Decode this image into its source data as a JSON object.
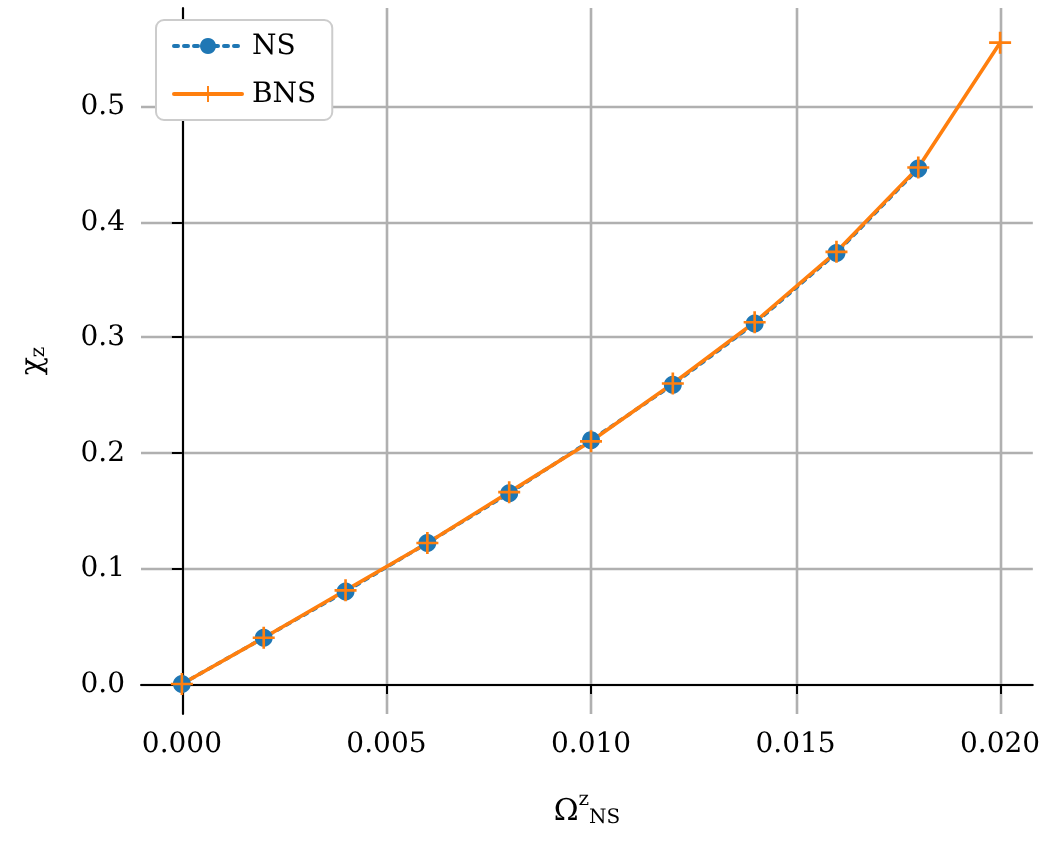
{
  "chart_data": {
    "type": "line",
    "xlabel": "Ω$^{z}$$_{NS}$",
    "ylabel": "χ$_{z}$",
    "x": [
      0,
      0.002,
      0.004,
      0.006,
      0.008,
      0.01,
      0.012,
      0.014,
      0.016,
      0.018,
      0.02
    ],
    "series": [
      {
        "name": "NS",
        "color": "#1f77b4",
        "marker": "circle",
        "line_style": "dotted",
        "values": [
          0,
          0.04,
          0.08,
          0.122,
          0.165,
          0.211,
          0.259,
          0.312,
          0.373,
          0.446,
          null
        ]
      },
      {
        "name": "BNS",
        "color": "#ff7f0e",
        "marker": "cross",
        "line_style": "solid",
        "values": [
          0,
          0.04,
          0.081,
          0.122,
          0.166,
          0.21,
          0.26,
          0.313,
          0.374,
          0.447,
          0.555
        ]
      }
    ],
    "xlim": [
      -0.001,
      0.0208
    ],
    "xticks": [
      {
        "value": 0,
        "label": "0.000"
      },
      {
        "value": 0.005,
        "label": "0.005"
      },
      {
        "value": 0.01,
        "label": "0.010"
      },
      {
        "value": 0.015,
        "label": "0.015"
      },
      {
        "value": 0.02,
        "label": "0.020"
      }
    ],
    "ylim": [
      -0.026,
      0.585
    ],
    "yticks": [
      {
        "value": 0,
        "label": "0.0"
      },
      {
        "value": 0.1,
        "label": "0.1"
      },
      {
        "value": 0.2,
        "label": "0.2"
      },
      {
        "value": 0.3,
        "label": "0.3"
      },
      {
        "value": 0.4,
        "label": "0.4"
      },
      {
        "value": 0.5,
        "label": "0.5"
      }
    ],
    "grid": true,
    "legend": "top left"
  }
}
